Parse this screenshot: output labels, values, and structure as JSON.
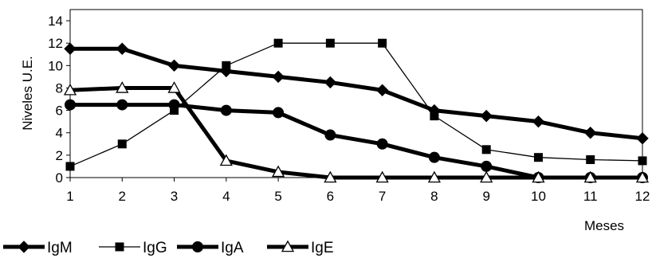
{
  "chart_data": {
    "type": "line",
    "title": "",
    "xlabel": "Meses",
    "ylabel": "Niveles U.E.",
    "x": [
      1,
      2,
      3,
      4,
      5,
      6,
      7,
      8,
      9,
      10,
      11,
      12
    ],
    "xticks": [
      "1",
      "2",
      "3",
      "4",
      "5",
      "6",
      "7",
      "8",
      "9",
      "10",
      "11",
      "12"
    ],
    "yticks": [
      "0",
      "2",
      "4",
      "6",
      "8",
      "10",
      "12",
      "14"
    ],
    "ylim": [
      0,
      15
    ],
    "grid": false,
    "legend_position": "bottom",
    "series": [
      {
        "name": "IgM",
        "marker": "diamond",
        "line": "thick",
        "values": [
          11.5,
          11.5,
          10,
          9.5,
          9,
          8.5,
          7.8,
          6,
          5.5,
          5,
          4,
          3.5
        ]
      },
      {
        "name": "IgG",
        "marker": "square",
        "line": "thin",
        "values": [
          1,
          3,
          6,
          10,
          12,
          12,
          12,
          5.5,
          2.5,
          1.8,
          1.6,
          1.5
        ]
      },
      {
        "name": "IgA",
        "marker": "circle",
        "line": "thick",
        "values": [
          6.5,
          6.5,
          6.5,
          6,
          5.8,
          3.8,
          3,
          1.8,
          1,
          0,
          0,
          0
        ]
      },
      {
        "name": "IgE",
        "marker": "triangle",
        "line": "thick",
        "values": [
          7.8,
          8,
          8,
          1.5,
          0.5,
          0,
          0,
          0,
          0,
          0,
          0,
          0
        ]
      }
    ],
    "colors": {
      "line": "#000000",
      "hollow_fill": "#ffffff"
    }
  }
}
